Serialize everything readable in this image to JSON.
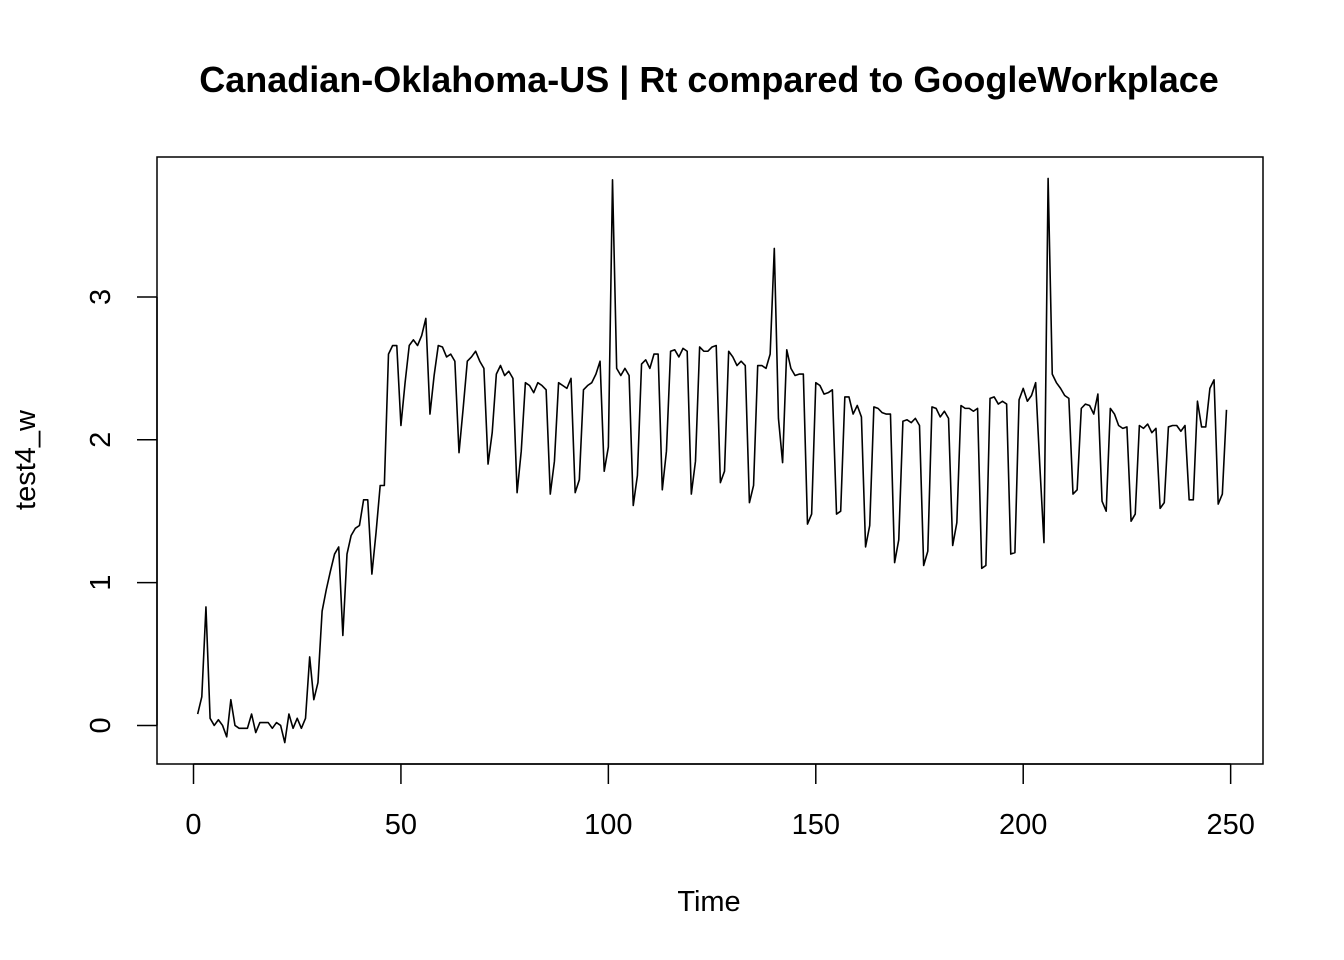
{
  "chart_data": {
    "type": "line",
    "title": "Canadian-Oklahoma-US | Rt compared to GoogleWorkplace",
    "xlabel": "Time",
    "ylabel": "test4_w",
    "xlim": [
      -8.8,
      257.8
    ],
    "ylim": [
      -0.27,
      3.98
    ],
    "x_ticks": [
      0,
      50,
      100,
      150,
      200,
      250
    ],
    "y_ticks": [
      0,
      1,
      2,
      3
    ],
    "grid": false,
    "legend": "none",
    "line_color": "#000000",
    "series": [
      {
        "x_start": 1,
        "values": [
          0.08,
          0.2,
          0.83,
          0.05,
          0.0,
          0.04,
          0.0,
          -0.08,
          0.18,
          0.0,
          -0.02,
          -0.02,
          -0.02,
          0.08,
          -0.05,
          0.02,
          0.02,
          0.02,
          -0.02,
          0.02,
          0.0,
          -0.12,
          0.08,
          -0.02,
          0.05,
          -0.02,
          0.05,
          0.48,
          0.18,
          0.3,
          0.8,
          0.95,
          1.08,
          1.2,
          1.25,
          0.63,
          1.2,
          1.33,
          1.38,
          1.4,
          1.58,
          1.58,
          1.06,
          1.35,
          1.68,
          1.68,
          2.6,
          2.66,
          2.66,
          2.1,
          2.4,
          2.66,
          2.7,
          2.66,
          2.73,
          2.85,
          2.18,
          2.45,
          2.66,
          2.65,
          2.58,
          2.6,
          2.55,
          1.91,
          2.22,
          2.55,
          2.58,
          2.62,
          2.55,
          2.5,
          1.83,
          2.05,
          2.46,
          2.52,
          2.45,
          2.48,
          2.43,
          1.63,
          1.92,
          2.4,
          2.38,
          2.33,
          2.4,
          2.38,
          2.35,
          1.62,
          1.85,
          2.4,
          2.38,
          2.36,
          2.43,
          1.63,
          1.72,
          2.35,
          2.38,
          2.4,
          2.46,
          2.55,
          1.78,
          1.95,
          3.82,
          2.5,
          2.45,
          2.5,
          2.45,
          1.54,
          1.75,
          2.53,
          2.56,
          2.5,
          2.6,
          2.6,
          1.65,
          1.92,
          2.62,
          2.63,
          2.58,
          2.64,
          2.62,
          1.62,
          1.85,
          2.65,
          2.62,
          2.62,
          2.65,
          2.66,
          1.7,
          1.78,
          2.62,
          2.58,
          2.52,
          2.55,
          2.52,
          1.56,
          1.68,
          2.52,
          2.52,
          2.5,
          2.6,
          3.34,
          2.15,
          1.84,
          2.63,
          2.5,
          2.45,
          2.46,
          2.46,
          1.41,
          1.48,
          2.4,
          2.38,
          2.32,
          2.33,
          2.35,
          1.48,
          1.5,
          2.3,
          2.3,
          2.18,
          2.24,
          2.16,
          1.25,
          1.4,
          2.23,
          2.22,
          2.19,
          2.18,
          2.18,
          1.14,
          1.3,
          2.13,
          2.14,
          2.12,
          2.15,
          2.1,
          1.12,
          1.22,
          2.23,
          2.22,
          2.16,
          2.2,
          2.15,
          1.26,
          1.42,
          2.24,
          2.22,
          2.22,
          2.2,
          2.22,
          1.1,
          1.12,
          2.29,
          2.3,
          2.25,
          2.27,
          2.25,
          1.2,
          1.21,
          2.28,
          2.36,
          2.27,
          2.31,
          2.4,
          1.82,
          1.28,
          3.83,
          2.46,
          2.4,
          2.36,
          2.31,
          2.29,
          1.62,
          1.65,
          2.22,
          2.25,
          2.24,
          2.18,
          2.32,
          1.57,
          1.5,
          2.22,
          2.18,
          2.1,
          2.08,
          2.09,
          1.43,
          1.48,
          2.1,
          2.08,
          2.11,
          2.05,
          2.08,
          1.52,
          1.56,
          2.09,
          2.1,
          2.1,
          2.06,
          2.1,
          1.58,
          1.58,
          2.27,
          2.09,
          2.09,
          2.36,
          2.42,
          1.55,
          1.62,
          2.21
        ]
      }
    ]
  }
}
